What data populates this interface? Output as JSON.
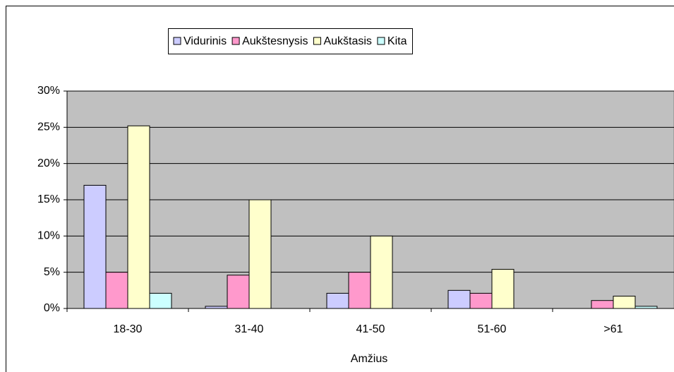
{
  "chart_data": {
    "type": "bar",
    "x_label": "Amžius",
    "categories": [
      "18-30",
      "31-40",
      "41-50",
      "51-60",
      ">61"
    ],
    "series": [
      {
        "name": "Vidurinis",
        "color": "#ccccff",
        "values": [
          17.0,
          0.3,
          2.1,
          2.5,
          0
        ]
      },
      {
        "name": "Aukštesnysis",
        "color": "#ff99cc",
        "values": [
          5.0,
          4.6,
          5.0,
          2.1,
          1.1
        ]
      },
      {
        "name": "Aukštasis",
        "color": "#ffffcc",
        "values": [
          25.2,
          15.0,
          10.0,
          5.4,
          1.7
        ]
      },
      {
        "name": "Kita",
        "color": "#ccffff",
        "values": [
          2.1,
          0,
          0,
          0,
          0.3
        ]
      }
    ],
    "ylim": [
      0,
      30
    ],
    "yticks": [
      {
        "value": 0,
        "label": "0%"
      },
      {
        "value": 5,
        "label": "5%"
      },
      {
        "value": 10,
        "label": "10%"
      },
      {
        "value": 15,
        "label": "15%"
      },
      {
        "value": 20,
        "label": "20%"
      },
      {
        "value": 25,
        "label": "25%"
      },
      {
        "value": 30,
        "label": "30%"
      }
    ],
    "grid": true,
    "legend": "top",
    "plot_background": "#c0c0c0"
  }
}
